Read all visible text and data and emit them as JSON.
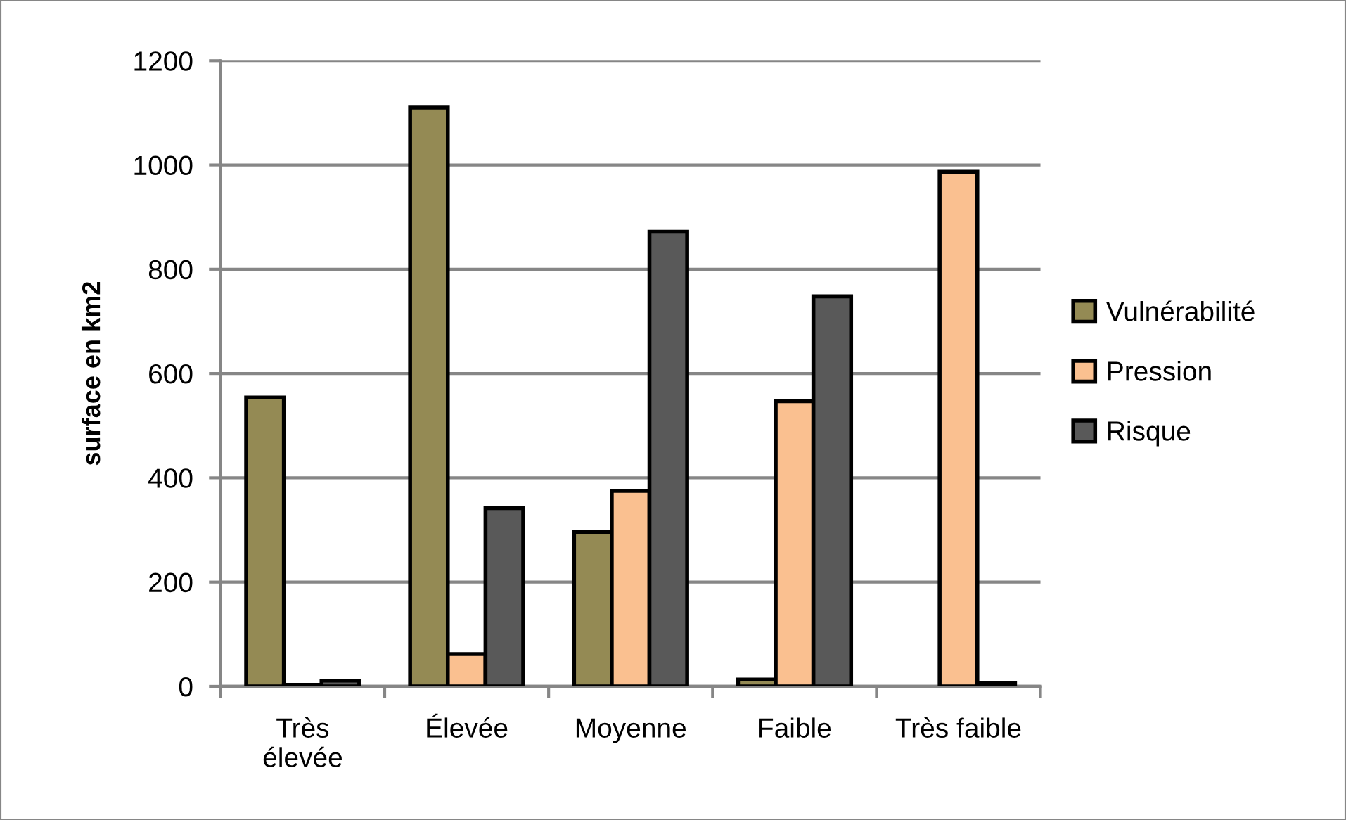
{
  "chart_data": {
    "type": "bar",
    "ylabel": "surface en km2",
    "categories": [
      "Très\nélevée",
      "Élevée",
      "Moyenne",
      "Faible",
      "Très faible"
    ],
    "series": [
      {
        "name": "Vulnérabilité",
        "color": "#948a54",
        "values": [
          554,
          1110,
          296,
          13,
          null
        ]
      },
      {
        "name": "Pression",
        "color": "#fac090",
        "values": [
          3,
          62,
          375,
          547,
          987
        ]
      },
      {
        "name": "Risque",
        "color": "#595959",
        "values": [
          11,
          342,
          872,
          748,
          7
        ]
      }
    ],
    "ylim": [
      0,
      1200
    ],
    "yticks": [
      0,
      200,
      400,
      600,
      800,
      1000,
      1200
    ],
    "grid": "y",
    "legend": "right"
  }
}
